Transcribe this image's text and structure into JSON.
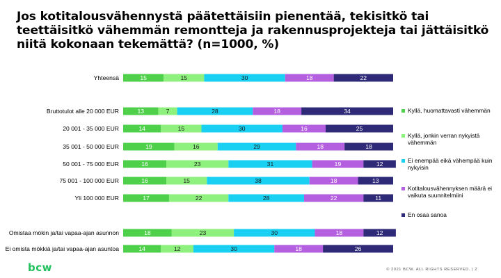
{
  "title": "Jos kotitalousvähennystä päätettäisiin pienentää, tekisitkö tai teettäisitkö vähemmän remontteja ja rakennusprojekteja tai jättäisitkö niitä kokonaan tekemättä? (n=1000, %)",
  "footer": "© 2021 BCW. ALL RIGHTS RESERVED. | 2",
  "logo": "bcw",
  "chart_data": {
    "type": "bar",
    "orientation": "horizontal",
    "stacked": true,
    "title": "Jos kotitalousvähennystä päätettäisiin pienentää, tekisitkö tai teettäisitkö vähemmän remontteja ja rakennusprojekteja tai jättäisitkö niitä kokonaan tekemättä? (n=1000, %)",
    "xlim": [
      0,
      100
    ],
    "grid": false,
    "legend_position": "right",
    "categories": [
      "Yhteensä",
      "Bruttotulot alle 20 000 EUR",
      "20 001 - 35 000 EUR",
      "35 001 - 50 000 EUR",
      "50 001 - 75 000 EUR",
      "75 001 - 100 000 EUR",
      "Yli 100 000 EUR",
      "Omistaa mökin ja/tai vapaa-ajan asunnon",
      "Ei omista mökkiä ja/tai vapaa-ajan asuntoa"
    ],
    "series": [
      {
        "name": "Kyllä, huomattavasti vähemmän",
        "color": "#4fd04b",
        "label_color": "#ffffff",
        "values": [
          15,
          13,
          14,
          19,
          16,
          16,
          17,
          18,
          14
        ]
      },
      {
        "name": "Kyllä, jonkin verran nykyistä vähemmän",
        "color": "#8ef07d",
        "label_color": "#1a1a1a",
        "values": [
          15,
          7,
          15,
          16,
          23,
          15,
          22,
          23,
          12
        ]
      },
      {
        "name": "Ei enempää eikä vähempää kuin nykyisin",
        "color": "#1ad0f2",
        "label_color": "#1a1a1a",
        "values": [
          30,
          28,
          30,
          29,
          31,
          38,
          28,
          30,
          30
        ]
      },
      {
        "name": "Kotitalousvähennyksen määrä ei vaikuta suunnitelmiini",
        "color": "#b45fe0",
        "label_color": "#ffffff",
        "values": [
          18,
          18,
          16,
          18,
          19,
          18,
          22,
          18,
          18
        ]
      },
      {
        "name": "En osaa sanoa",
        "color": "#2e2a78",
        "label_color": "#ffffff",
        "values": [
          22,
          34,
          25,
          18,
          12,
          13,
          11,
          12,
          26
        ]
      }
    ]
  }
}
